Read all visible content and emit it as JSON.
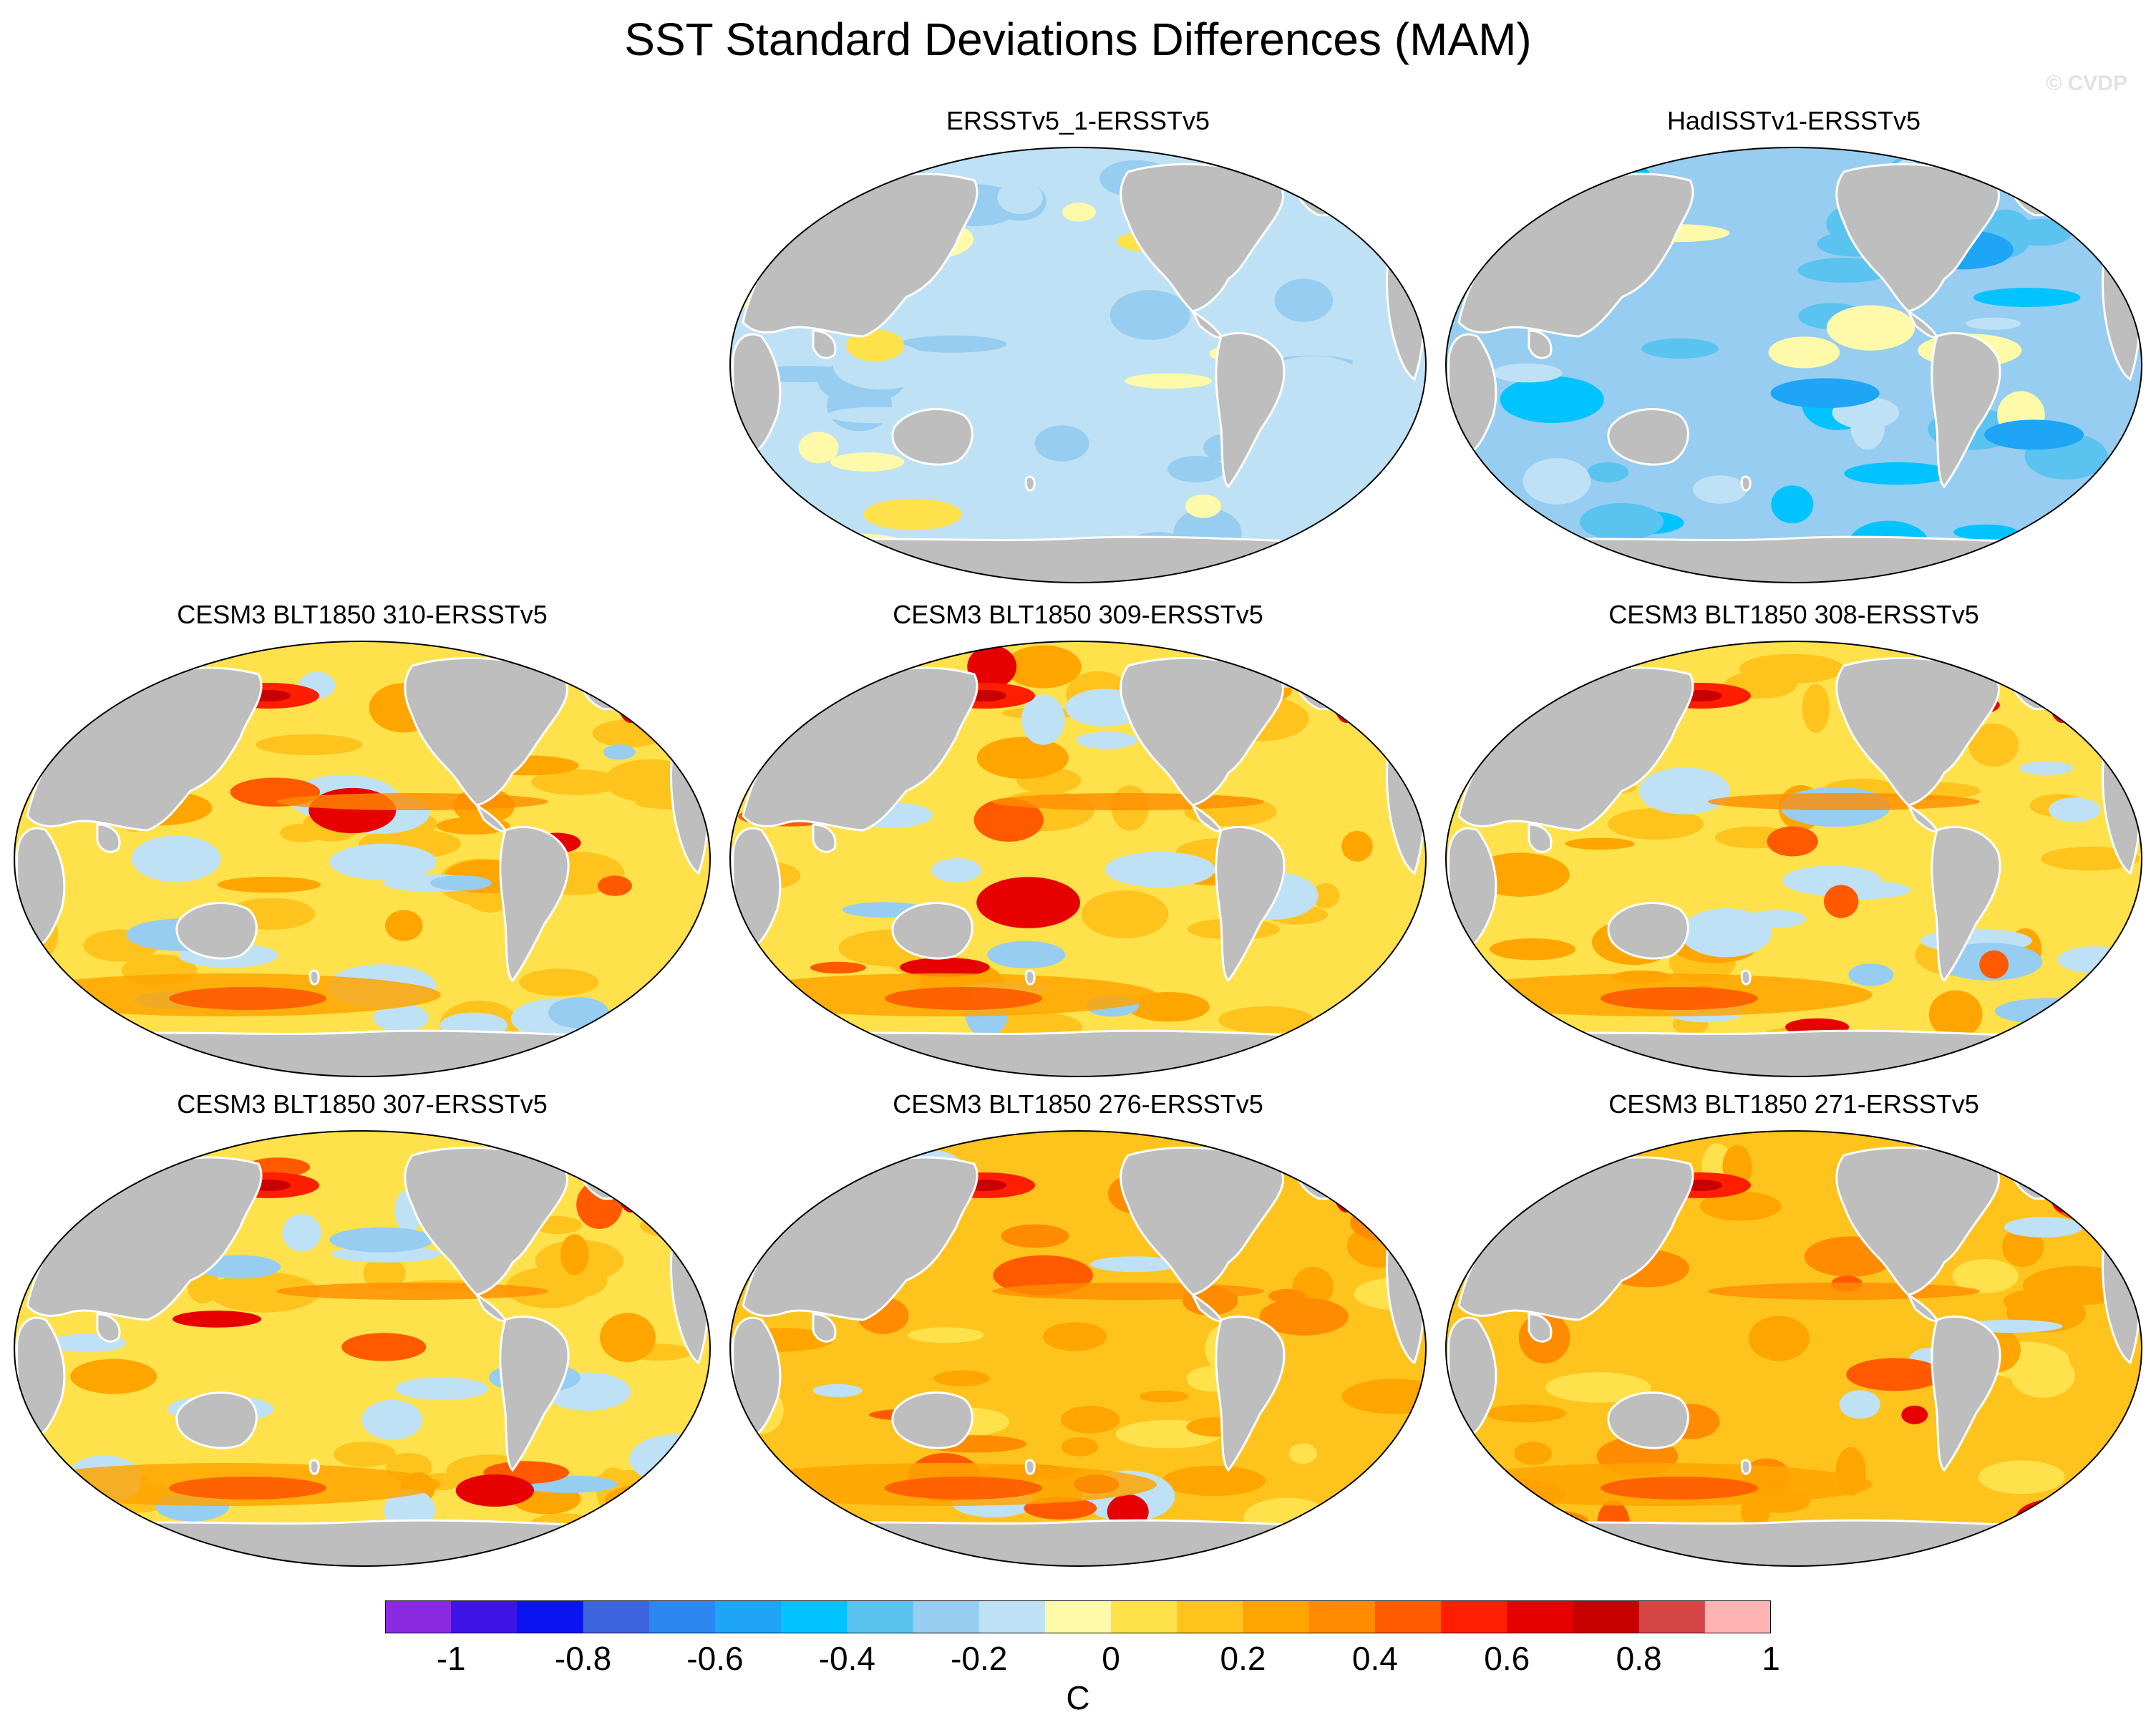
{
  "title": "SST Standard Deviations Differences (MAM)",
  "watermark": "© CVDP",
  "panels": [
    {
      "title": "ERSSTv5_1-ERSSTv5",
      "pattern": "weak-negative"
    },
    {
      "title": "HadISSTv1-ERSSTv5",
      "pattern": "moderate-negative"
    },
    {
      "title": "CESM3 BLT1850 310-ERSSTv5",
      "pattern": "model-positive"
    },
    {
      "title": "CESM3 BLT1850 309-ERSSTv5",
      "pattern": "model-positive"
    },
    {
      "title": "CESM3 BLT1850 308-ERSSTv5",
      "pattern": "model-positive"
    },
    {
      "title": "CESM3 BLT1850 307-ERSSTv5",
      "pattern": "model-positive"
    },
    {
      "title": "CESM3 BLT1850 276-ERSSTv5",
      "pattern": "model-strong-positive"
    },
    {
      "title": "CESM3 BLT1850 271-ERSSTv5",
      "pattern": "model-strong-positive"
    }
  ],
  "colorbar": {
    "colors": [
      "#8a2be2",
      "#3c14e6",
      "#0a14f0",
      "#3c64dc",
      "#2d87f0",
      "#1ea5f5",
      "#00c3ff",
      "#5ac3f0",
      "#96cdf0",
      "#bee1f5",
      "#fffaaa",
      "#ffe14b",
      "#ffc31e",
      "#ffa500",
      "#ff8c00",
      "#ff5a00",
      "#ff1e00",
      "#e60000",
      "#c80000",
      "#d74646",
      "#ffb4b4"
    ],
    "labels": [
      "-1",
      "-0.8",
      "-0.6",
      "-0.4",
      "-0.2",
      "0",
      "0.2",
      "0.4",
      "0.6",
      "0.8",
      "1"
    ],
    "unit": "C"
  },
  "colors": {
    "land": "#bebebe",
    "coast": "#ffffff",
    "outline": "#000000"
  }
}
